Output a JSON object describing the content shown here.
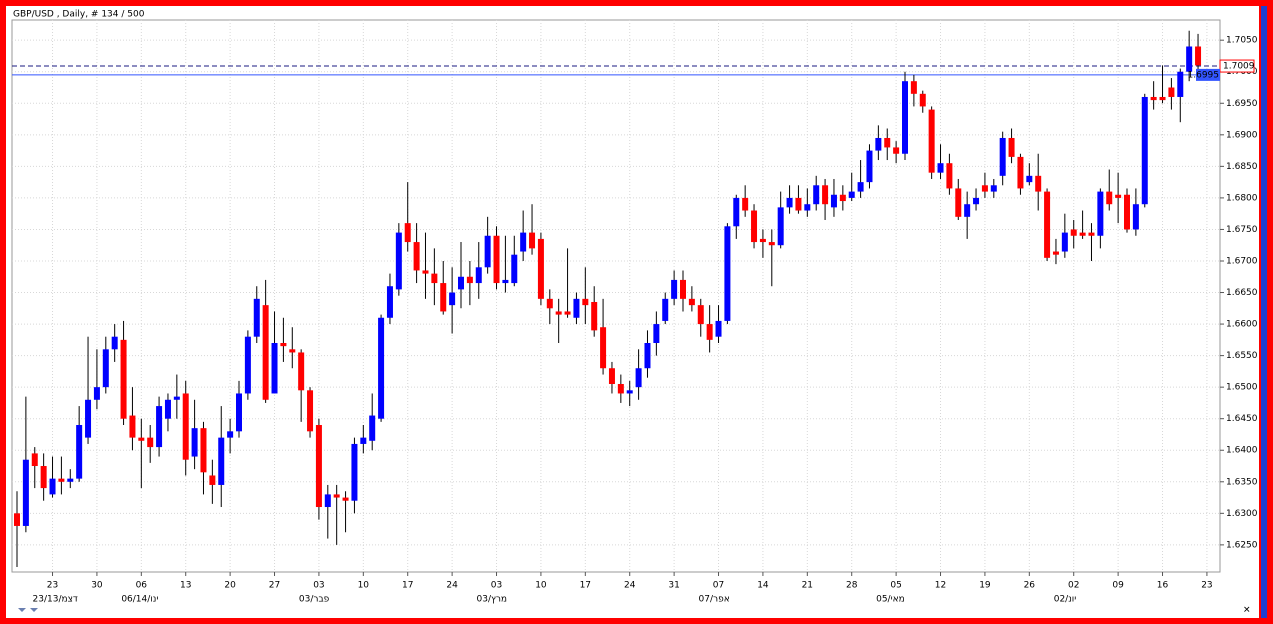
{
  "chart_data": {
    "type": "candlestick",
    "title": "GBP/USD , Daily, # 134 / 500",
    "up_color": "#0000ff",
    "down_color": "#ff0000",
    "grid": true,
    "ylim": [
      1.6207,
      1.7082
    ],
    "yticks": [
      {
        "value": 1.625,
        "label": "1.6250"
      },
      {
        "value": 1.63,
        "label": "1.6300"
      },
      {
        "value": 1.635,
        "label": "1.6350"
      },
      {
        "value": 1.64,
        "label": "1.6400"
      },
      {
        "value": 1.645,
        "label": "1.6450"
      },
      {
        "value": 1.65,
        "label": "1.6500"
      },
      {
        "value": 1.655,
        "label": "1.6550"
      },
      {
        "value": 1.66,
        "label": "1.6600"
      },
      {
        "value": 1.665,
        "label": "1.6650"
      },
      {
        "value": 1.67,
        "label": "1.6700"
      },
      {
        "value": 1.675,
        "label": "1.6750"
      },
      {
        "value": 1.68,
        "label": "1.6800"
      },
      {
        "value": 1.685,
        "label": "1.6850"
      },
      {
        "value": 1.69,
        "label": "1.6900"
      },
      {
        "value": 1.695,
        "label": "1.6950"
      },
      {
        "value": 1.7,
        "label": "1.7000"
      },
      {
        "value": 1.705,
        "label": "1.7050"
      }
    ],
    "levels": [
      {
        "value": 1.7009,
        "label": "1.7009",
        "style": "dashed"
      },
      {
        "value": 1.6995,
        "label": "1.6995",
        "style": "solid"
      }
    ],
    "categories": [
      null,
      null,
      null,
      null,
      "23",
      null,
      null,
      null,
      null,
      "30",
      null,
      null,
      null,
      null,
      "06",
      null,
      null,
      null,
      null,
      "13",
      null,
      null,
      null,
      null,
      "20",
      null,
      null,
      null,
      null,
      "27",
      null,
      null,
      null,
      null,
      "03",
      null,
      null,
      null,
      null,
      "10",
      null,
      null,
      null,
      null,
      "17",
      null,
      null,
      null,
      null,
      "24",
      null,
      null,
      null,
      null,
      "03",
      null,
      null,
      null,
      null,
      "10",
      null,
      null,
      null,
      null,
      "17",
      null,
      null,
      null,
      null,
      "24",
      null,
      null,
      null,
      null,
      "31",
      null,
      null,
      null,
      null,
      "07",
      null,
      null,
      null,
      null,
      "14",
      null,
      null,
      null,
      null,
      "21",
      null,
      null,
      null,
      null,
      "28",
      null,
      null,
      null,
      null,
      "05",
      null,
      null,
      null,
      null,
      "12",
      null,
      null,
      null,
      null,
      "19",
      null,
      null,
      null,
      null,
      "26",
      null,
      null,
      null,
      null,
      "02",
      null,
      null,
      null,
      null,
      "09",
      null,
      null,
      null,
      null,
      "16",
      null,
      null,
      null,
      null,
      "23"
    ],
    "month_labels": [
      null,
      null,
      null,
      null,
      "23/13/דצמ",
      null,
      null,
      null,
      null,
      null,
      null,
      null,
      null,
      null,
      "06/14/ינו",
      null,
      null,
      null,
      null,
      null,
      null,
      null,
      null,
      null,
      null,
      null,
      null,
      null,
      null,
      null,
      null,
      null,
      null,
      null,
      "03/פבר",
      null,
      null,
      null,
      null,
      null,
      null,
      null,
      null,
      null,
      null,
      null,
      null,
      null,
      null,
      null,
      null,
      null,
      null,
      null,
      "03/מרץ",
      null,
      null,
      null,
      null,
      null,
      null,
      null,
      null,
      null,
      null,
      null,
      null,
      null,
      null,
      null,
      null,
      null,
      null,
      null,
      null,
      null,
      null,
      null,
      null,
      "07/אפר",
      null,
      null,
      null,
      null,
      null,
      null,
      null,
      null,
      null,
      null,
      null,
      null,
      null,
      null,
      null,
      null,
      null,
      null,
      null,
      "05/מאי",
      null,
      null,
      null,
      null,
      null,
      null,
      null,
      null,
      null,
      null,
      null,
      null,
      null,
      null,
      null,
      null,
      null,
      null,
      null,
      "02/יונ",
      null,
      null,
      null,
      null,
      null,
      null,
      null,
      null,
      null,
      null,
      null,
      null,
      null,
      null,
      null
    ],
    "open": [
      1.63,
      1.628,
      1.6395,
      1.6375,
      1.633,
      1.6355,
      1.635,
      1.6355,
      1.642,
      1.648,
      1.65,
      1.656,
      1.6575,
      1.6455,
      1.642,
      1.642,
      1.6405,
      1.645,
      1.648,
      1.649,
      1.639,
      1.6435,
      1.636,
      1.6345,
      1.642,
      1.643,
      1.649,
      1.658,
      1.663,
      1.649,
      1.657,
      1.656,
      1.6555,
      1.6495,
      1.644,
      1.631,
      1.633,
      1.6325,
      1.632,
      1.641,
      1.6415,
      1.645,
      1.661,
      1.6655,
      1.676,
      1.673,
      1.6685,
      1.668,
      1.6665,
      1.663,
      1.6655,
      1.6675,
      1.6665,
      1.669,
      1.674,
      1.6665,
      1.6665,
      1.6715,
      1.6745,
      1.6735,
      1.664,
      1.662,
      1.662,
      1.661,
      1.664,
      1.6635,
      1.6595,
      1.653,
      1.6505,
      1.649,
      1.65,
      1.653,
      1.657,
      1.6605,
      1.664,
      1.667,
      1.664,
      1.663,
      1.66,
      1.658,
      1.6605,
      1.6755,
      1.68,
      1.678,
      1.6735,
      1.673,
      1.6725,
      1.6785,
      1.68,
      1.678,
      1.679,
      1.682,
      1.6785,
      1.6805,
      1.68,
      1.681,
      1.6825,
      1.6875,
      1.6895,
      1.688,
      1.687,
      1.6985,
      1.6965,
      1.694,
      1.684,
      1.6855,
      1.6815,
      1.677,
      1.679,
      1.682,
      1.681,
      1.6835,
      1.6895,
      1.6865,
      1.6825,
      1.6835,
      1.681,
      1.6715,
      1.6715,
      1.675,
      1.6745,
      1.6745,
      1.674,
      1.681,
      1.6805,
      1.6805,
      1.675,
      1.679,
      1.696,
      1.696,
      1.6975,
      1.696,
      1.7,
      1.704,
      null
    ],
    "high": [
      1.6335,
      1.6485,
      1.6405,
      1.6395,
      1.639,
      1.639,
      1.637,
      1.647,
      1.658,
      1.656,
      1.658,
      1.66,
      1.6605,
      1.65,
      1.645,
      1.644,
      1.6485,
      1.649,
      1.652,
      1.651,
      1.648,
      1.6445,
      1.6385,
      1.647,
      1.645,
      1.651,
      1.659,
      1.666,
      1.667,
      1.662,
      1.661,
      1.6595,
      1.656,
      1.65,
      1.645,
      1.6345,
      1.6345,
      1.6335,
      1.642,
      1.644,
      1.649,
      1.6615,
      1.668,
      1.676,
      1.6825,
      1.676,
      1.6745,
      1.672,
      1.67,
      1.669,
      1.673,
      1.67,
      1.673,
      1.677,
      1.6755,
      1.674,
      1.674,
      1.678,
      1.679,
      1.6745,
      1.6655,
      1.664,
      1.672,
      1.665,
      1.669,
      1.666,
      1.664,
      1.654,
      1.652,
      1.651,
      1.656,
      1.659,
      1.662,
      1.665,
      1.6685,
      1.6685,
      1.666,
      1.664,
      1.663,
      1.663,
      1.676,
      1.6805,
      1.682,
      1.679,
      1.675,
      1.675,
      1.681,
      1.682,
      1.682,
      1.6815,
      1.6835,
      1.683,
      1.683,
      1.682,
      1.684,
      1.686,
      1.6885,
      1.6915,
      1.691,
      1.689,
      1.7,
      1.6995,
      1.697,
      1.6945,
      1.6885,
      1.687,
      1.683,
      1.681,
      1.6815,
      1.684,
      1.683,
      1.6905,
      1.691,
      1.687,
      1.6855,
      1.687,
      1.6815,
      1.6735,
      1.6775,
      1.6765,
      1.678,
      1.676,
      1.6815,
      1.6845,
      1.684,
      1.6815,
      1.6815,
      1.6965,
      1.6985,
      1.701,
      1.699,
      1.7005,
      1.7065,
      1.706,
      null
    ],
    "low": [
      1.6215,
      1.627,
      1.634,
      1.632,
      1.6325,
      1.633,
      1.634,
      1.635,
      1.641,
      1.6465,
      1.649,
      1.654,
      1.644,
      1.64,
      1.634,
      1.638,
      1.639,
      1.643,
      1.645,
      1.636,
      1.637,
      1.633,
      1.6315,
      1.631,
      1.6395,
      1.642,
      1.648,
      1.657,
      1.6475,
      1.649,
      1.654,
      1.653,
      1.6445,
      1.642,
      1.629,
      1.626,
      1.625,
      1.627,
      1.63,
      1.6395,
      1.64,
      1.6445,
      1.66,
      1.6645,
      1.6715,
      1.6665,
      1.664,
      1.663,
      1.6615,
      1.6585,
      1.6625,
      1.663,
      1.664,
      1.668,
      1.6655,
      1.665,
      1.666,
      1.67,
      1.671,
      1.663,
      1.66,
      1.657,
      1.661,
      1.66,
      1.66,
      1.658,
      1.652,
      1.649,
      1.6475,
      1.647,
      1.648,
      1.6515,
      1.655,
      1.66,
      1.663,
      1.662,
      1.662,
      1.658,
      1.6555,
      1.657,
      1.66,
      1.6735,
      1.677,
      1.672,
      1.6705,
      1.666,
      1.672,
      1.6775,
      1.6775,
      1.677,
      1.678,
      1.6765,
      1.677,
      1.678,
      1.6795,
      1.68,
      1.6815,
      1.686,
      1.686,
      1.6855,
      1.686,
      1.6945,
      1.6935,
      1.683,
      1.683,
      1.6805,
      1.6765,
      1.6735,
      1.678,
      1.68,
      1.68,
      1.682,
      1.6855,
      1.6805,
      1.682,
      1.678,
      1.67,
      1.6695,
      1.6705,
      1.672,
      1.6735,
      1.67,
      1.672,
      1.678,
      1.676,
      1.6745,
      1.674,
      1.6785,
      1.694,
      1.695,
      1.694,
      1.692,
      1.6985,
      1.7,
      null
    ],
    "close": [
      1.628,
      1.6385,
      1.6375,
      1.634,
      1.6355,
      1.635,
      1.6355,
      1.644,
      1.648,
      1.65,
      1.656,
      1.658,
      1.645,
      1.642,
      1.6415,
      1.6405,
      1.647,
      1.648,
      1.6485,
      1.6385,
      1.6435,
      1.6365,
      1.6345,
      1.642,
      1.643,
      1.649,
      1.658,
      1.664,
      1.648,
      1.657,
      1.6565,
      1.6555,
      1.6495,
      1.643,
      1.631,
      1.633,
      1.6325,
      1.632,
      1.641,
      1.642,
      1.6455,
      1.661,
      1.666,
      1.6745,
      1.673,
      1.6685,
      1.668,
      1.6665,
      1.662,
      1.665,
      1.6675,
      1.6665,
      1.669,
      1.674,
      1.6665,
      1.667,
      1.671,
      1.6745,
      1.672,
      1.664,
      1.6625,
      1.6615,
      1.6615,
      1.664,
      1.663,
      1.659,
      1.653,
      1.6505,
      1.649,
      1.6495,
      1.653,
      1.657,
      1.66,
      1.664,
      1.667,
      1.664,
      1.663,
      1.66,
      1.6575,
      1.6605,
      1.6755,
      1.68,
      1.678,
      1.673,
      1.673,
      1.6725,
      1.6785,
      1.68,
      1.678,
      1.679,
      1.682,
      1.679,
      1.6805,
      1.6795,
      1.681,
      1.6825,
      1.6875,
      1.6895,
      1.688,
      1.687,
      1.6985,
      1.6965,
      1.6945,
      1.684,
      1.6855,
      1.6815,
      1.677,
      1.679,
      1.68,
      1.681,
      1.682,
      1.6895,
      1.6865,
      1.6815,
      1.6835,
      1.681,
      1.6705,
      1.671,
      1.6745,
      1.674,
      1.674,
      1.674,
      1.681,
      1.679,
      1.68,
      1.675,
      1.679,
      1.696,
      1.6955,
      1.6955,
      1.696,
      1.7,
      1.704,
      1.701,
      null
    ]
  }
}
